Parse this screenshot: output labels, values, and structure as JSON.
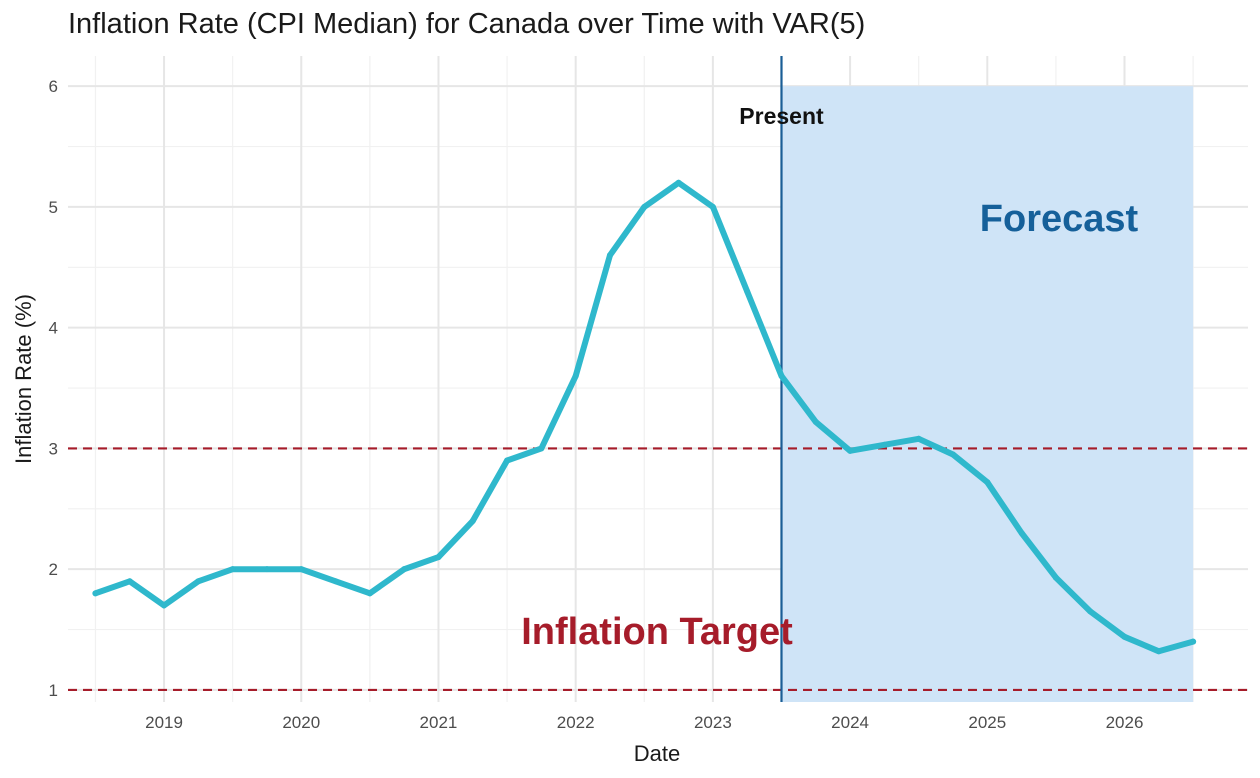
{
  "chart_data": {
    "type": "line",
    "title": "Inflation Rate (CPI Median) for Canada over Time with VAR(5)",
    "xlabel": "Date",
    "ylabel": "Inflation Rate (%)",
    "xlim": [
      2018.3,
      2026.9
    ],
    "ylim": [
      0.9,
      6.25
    ],
    "grid": true,
    "colors": {
      "line": "#2fb8cc",
      "target": "#a61c2a",
      "present": "#1a5e96",
      "forecast_fill": "#cfe4f7",
      "forecast_text": "#15609a",
      "grid": "#e6e6e6",
      "grid_minor": "#f1f1f1"
    },
    "x_ticks": [
      {
        "value": 2019,
        "label": "2019"
      },
      {
        "value": 2020,
        "label": "2020"
      },
      {
        "value": 2021,
        "label": "2021"
      },
      {
        "value": 2022,
        "label": "2022"
      },
      {
        "value": 2023,
        "label": "2023"
      },
      {
        "value": 2024,
        "label": "2024"
      },
      {
        "value": 2025,
        "label": "2025"
      },
      {
        "value": 2026,
        "label": "2026"
      }
    ],
    "y_ticks": [
      {
        "value": 1,
        "label": "1"
      },
      {
        "value": 2,
        "label": "2"
      },
      {
        "value": 3,
        "label": "3"
      },
      {
        "value": 4,
        "label": "4"
      },
      {
        "value": 5,
        "label": "5"
      },
      {
        "value": 6,
        "label": "6"
      }
    ],
    "series": [
      {
        "x": [
          2018.5,
          2018.75,
          2019.0,
          2019.25,
          2019.5,
          2019.75,
          2020.0,
          2020.25,
          2020.5,
          2020.75,
          2021.0,
          2021.25,
          2021.5,
          2021.75,
          2022.0,
          2022.25,
          2022.5,
          2022.75,
          2023.0,
          2023.25,
          2023.5,
          2023.75,
          2024.0,
          2024.25,
          2024.5,
          2024.75,
          2025.0,
          2025.25,
          2025.5,
          2025.75,
          2026.0,
          2026.25,
          2026.5
        ],
        "y": [
          1.8,
          1.9,
          1.7,
          1.9,
          2.0,
          2.0,
          2.0,
          1.9,
          1.8,
          2.0,
          2.1,
          2.4,
          2.9,
          3.0,
          3.6,
          4.6,
          5.0,
          5.2,
          5.0,
          4.3,
          3.6,
          3.22,
          2.98,
          3.03,
          3.08,
          2.95,
          2.72,
          2.3,
          1.93,
          1.65,
          1.44,
          1.32,
          1.4
        ]
      }
    ],
    "reference_lines": [
      {
        "axis": "y",
        "value": 1
      },
      {
        "axis": "y",
        "value": 3
      }
    ],
    "present_line": {
      "x": 2023.5,
      "label": "Present"
    },
    "forecast_region": {
      "x_start": 2023.5,
      "x_end": 2026.5,
      "y_top": 6,
      "label": "Forecast"
    },
    "annotations": [
      {
        "text": "Inflation Target",
        "x": 2021.5,
        "y": 1.36
      }
    ]
  }
}
